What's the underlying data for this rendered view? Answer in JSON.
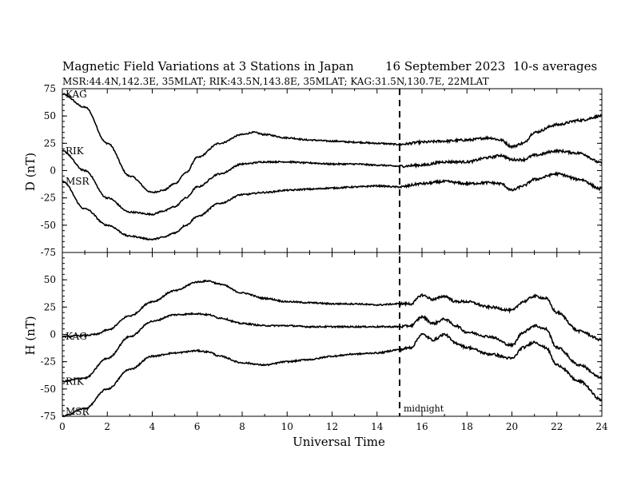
{
  "header": {
    "title": "Magnetic Field Variations at 3 Stations in Japan",
    "date": "16 September 2023",
    "averaging": "10-s averages",
    "stations_line": "MSR:44.4N,142.3E, 35MLAT;  RIK:43.5N,143.8E, 35MLAT;  KAG:31.5N,130.7E, 22MLAT"
  },
  "annotation": {
    "midnight": "midnight"
  },
  "chart_data": [
    {
      "type": "line",
      "panel": "D",
      "ylabel": "D (nT)",
      "ylim": [
        -75,
        75
      ],
      "yticks": [
        "75",
        "50",
        "25",
        "0",
        "-25",
        "-50",
        "-75"
      ],
      "xlim": [
        0,
        24
      ],
      "series": [
        {
          "name": "KAG",
          "x": [
            0,
            1,
            2,
            3,
            4,
            4.5,
            5,
            5.5,
            6,
            7,
            8,
            8.5,
            9,
            10,
            11,
            12,
            13,
            14,
            15,
            16,
            17,
            18,
            19,
            19.5,
            20,
            20.5,
            21,
            22,
            23,
            24
          ],
          "y": [
            70,
            58,
            25,
            -5,
            -20,
            -18,
            -12,
            -2,
            12,
            25,
            33,
            35,
            33,
            30,
            28,
            27,
            26,
            25,
            24,
            26,
            27,
            28,
            30,
            28,
            22,
            25,
            35,
            42,
            46,
            50
          ]
        },
        {
          "name": "RIK",
          "x": [
            0,
            1,
            2,
            3,
            4,
            4.5,
            5,
            5.5,
            6,
            7,
            8,
            9,
            10,
            11,
            12,
            13,
            14,
            15,
            16,
            17,
            18,
            19,
            19.5,
            20,
            20.5,
            21,
            22,
            23,
            24
          ],
          "y": [
            18,
            0,
            -25,
            -38,
            -40,
            -37,
            -33,
            -25,
            -15,
            -3,
            6,
            8,
            8,
            7,
            6,
            6,
            5,
            4,
            5,
            8,
            8,
            12,
            14,
            10,
            10,
            14,
            18,
            16,
            7
          ]
        },
        {
          "name": "MSR",
          "x": [
            0,
            1,
            2,
            3,
            4,
            4.5,
            5,
            5.5,
            6,
            7,
            8,
            9,
            10,
            11,
            12,
            13,
            14,
            15,
            16,
            17,
            18,
            19,
            19.5,
            20,
            20.5,
            21,
            22,
            23,
            24
          ],
          "y": [
            -10,
            -35,
            -50,
            -60,
            -63,
            -61,
            -57,
            -50,
            -42,
            -30,
            -22,
            -20,
            -18,
            -17,
            -16,
            -15,
            -14,
            -15,
            -12,
            -10,
            -12,
            -11,
            -12,
            -18,
            -14,
            -8,
            -3,
            -8,
            -17
          ]
        }
      ]
    },
    {
      "type": "line",
      "panel": "H",
      "ylabel": "H (nT)",
      "xlabel": "Universal Time",
      "ylim": [
        -75,
        75
      ],
      "yticks": [
        "50",
        "25",
        "0",
        "-25",
        "-50",
        "-75"
      ],
      "xlim": [
        0,
        24
      ],
      "xticks": [
        "0",
        "2",
        "4",
        "6",
        "8",
        "10",
        "12",
        "14",
        "16",
        "18",
        "20",
        "22",
        "24"
      ],
      "series": [
        {
          "name": "KAG",
          "x": [
            0,
            1,
            1.5,
            2,
            3,
            4,
            5,
            6,
            6.5,
            7,
            8,
            9,
            10,
            11,
            12,
            13,
            14,
            15,
            15.5,
            16,
            16.5,
            17,
            17.5,
            18,
            19,
            20,
            20.5,
            21,
            21.5,
            22,
            23,
            24
          ],
          "y": [
            -2,
            -1,
            0,
            4,
            17,
            30,
            40,
            48,
            49,
            46,
            38,
            33,
            30,
            29,
            28,
            28,
            27,
            28,
            28,
            36,
            32,
            35,
            30,
            30,
            25,
            22,
            30,
            35,
            33,
            20,
            3,
            -5
          ]
        },
        {
          "name": "RIK",
          "x": [
            0,
            1,
            2,
            3,
            4,
            5,
            6,
            6.5,
            7,
            8,
            9,
            10,
            11,
            12,
            13,
            14,
            15,
            15.5,
            16,
            16.5,
            17,
            17.5,
            18,
            19,
            20,
            20.5,
            21,
            21.5,
            22,
            23,
            24
          ],
          "y": [
            -43,
            -40,
            -22,
            -2,
            12,
            18,
            19,
            18,
            15,
            10,
            8,
            8,
            7,
            7,
            7,
            7,
            7,
            8,
            16,
            10,
            14,
            8,
            2,
            -2,
            -10,
            2,
            8,
            5,
            -12,
            -28,
            -40
          ]
        },
        {
          "name": "MSR",
          "x": [
            0,
            1,
            2,
            3,
            4,
            5,
            6,
            6.5,
            7,
            8,
            9,
            10,
            11,
            12,
            13,
            14,
            15,
            15.5,
            16,
            16.5,
            17,
            17.5,
            18,
            19,
            20,
            20.5,
            21,
            21.5,
            22,
            23,
            24
          ],
          "y": [
            -75,
            -68,
            -50,
            -32,
            -20,
            -17,
            -15,
            -16,
            -20,
            -26,
            -28,
            -25,
            -23,
            -20,
            -18,
            -17,
            -14,
            -12,
            0,
            -5,
            0,
            -8,
            -12,
            -18,
            -22,
            -12,
            -7,
            -12,
            -28,
            -43,
            -60
          ]
        }
      ]
    }
  ]
}
